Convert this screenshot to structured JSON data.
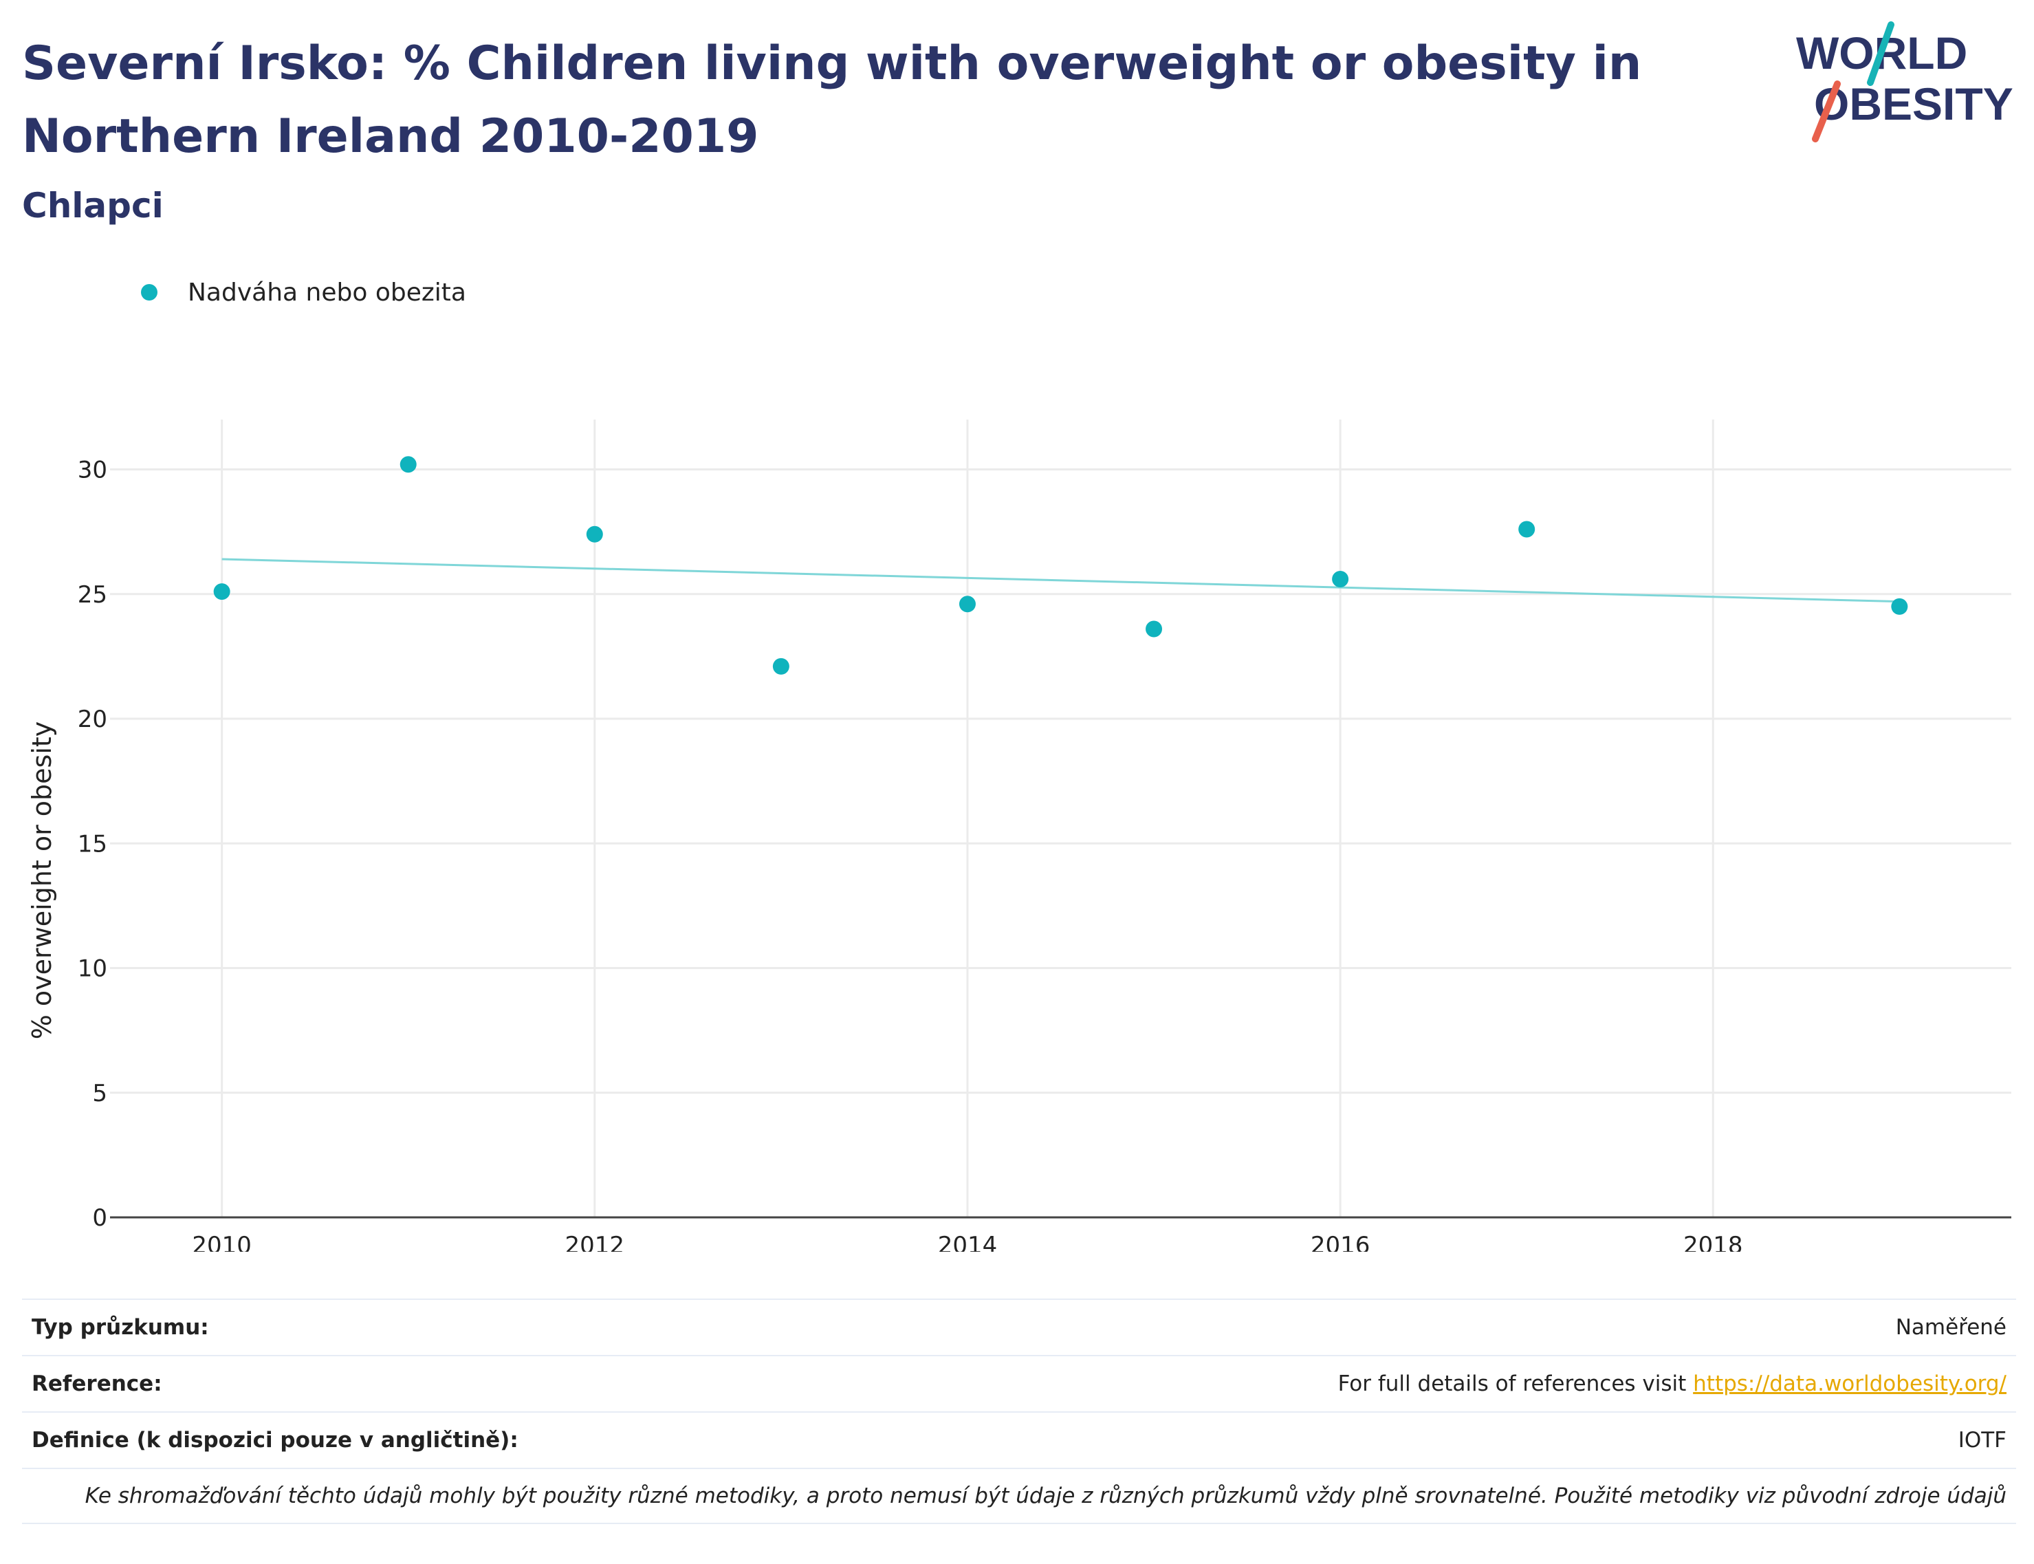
{
  "header": {
    "title": "Severní Irsko: % Children living with overweight or obesity in Northern Ireland 2010-2019",
    "subtitle": "Chlapci"
  },
  "logo": {
    "line1": "WORLD",
    "line2": "OBESITY"
  },
  "colors": {
    "accent": "#0fb3bd",
    "trendline": "#7fd6d8",
    "title": "#2b3467",
    "logo_teal": "#17b3b6",
    "logo_red": "#e8604c",
    "link": "#e6a800"
  },
  "chart_data": {
    "type": "scatter",
    "ylabel": "% overweight or obesity",
    "xlabel": "",
    "xlim": [
      2009.4,
      2019.6
    ],
    "ylim": [
      0,
      32
    ],
    "x_ticks": [
      2010,
      2012,
      2014,
      2016,
      2018
    ],
    "y_ticks": [
      0,
      5,
      10,
      15,
      20,
      25,
      30
    ],
    "grid": true,
    "legend_placement": "top-left",
    "series": [
      {
        "name": "Nadváha nebo obezita",
        "color": "#0fb3bd",
        "x": [
          2010,
          2011,
          2012,
          2013,
          2014,
          2015,
          2016,
          2017,
          2019
        ],
        "y": [
          25.1,
          30.2,
          27.4,
          22.1,
          24.6,
          23.6,
          25.6,
          27.6,
          24.5
        ]
      }
    ],
    "trendline": {
      "color": "#7fd6d8",
      "x": [
        2010,
        2019
      ],
      "y": [
        26.4,
        24.7
      ]
    }
  },
  "info": {
    "rows": [
      {
        "label": "Typ průzkumu:",
        "value": "Naměřené"
      },
      {
        "label": "Reference:",
        "value_prefix": "For full details of references visit ",
        "link": "https://data.worldobesity.org/"
      },
      {
        "label": "Definice (k dispozici pouze v angličtině):",
        "value": "IOTF"
      }
    ],
    "note": "Ke shromažďování těchto údajů mohly být použity různé metodiky, a proto nemusí být údaje z různých průzkumů vždy plně srovnatelné. Použité metodiky viz původní zdroje údajů"
  }
}
